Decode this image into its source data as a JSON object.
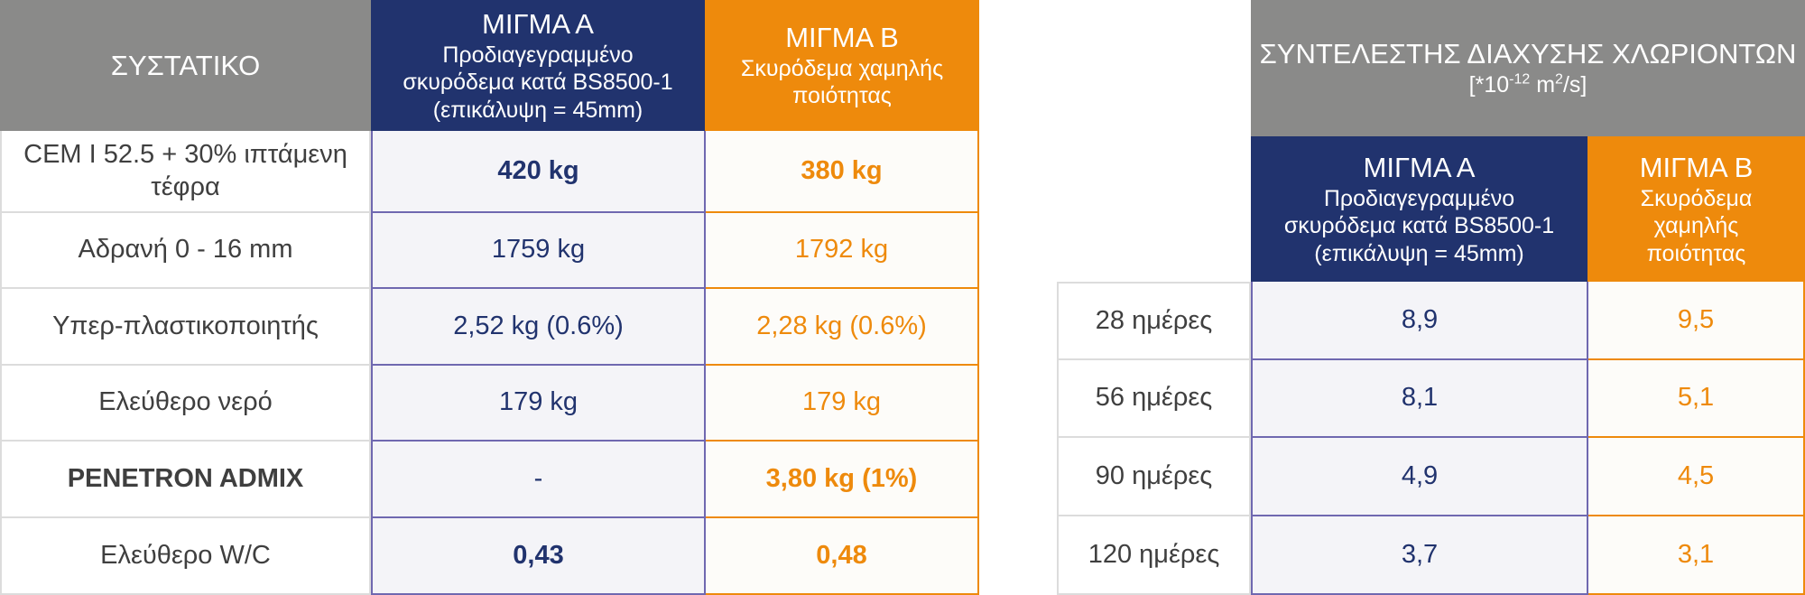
{
  "left_table": {
    "header": {
      "col_ingredient": "ΣΥΣΤΑΤΙΚΟ",
      "mix_a": {
        "title": "ΜΙΓΜΑ Α",
        "line1": "Προδιαγεγραμμένο",
        "line2": "σκυρόδεμα κατά  BS8500-1",
        "line3": "(επικάλυψη = 45mm)"
      },
      "mix_b": {
        "title": "ΜΙΓΜΑ Β",
        "line1": "Σκυρόδεμα χαμηλής",
        "line2": "ποιότητας"
      }
    },
    "rows": [
      {
        "label_line1": "CEM I 52.5 + 30% ιπτάμενη",
        "label_line2": "τέφρα",
        "a": "420 kg",
        "b": "380 kg"
      },
      {
        "label": "Αδρανή 0 - 16 mm",
        "a": "1759 kg",
        "b": "1792 kg"
      },
      {
        "label": "Υπερ-πλαστικοποιητής",
        "a": "2,52 kg (0.6%)",
        "b": "2,28 kg (0.6%)"
      },
      {
        "label": "Ελεύθερο νερό",
        "a": "179 kg",
        "b": "179 kg"
      },
      {
        "label": "PENETRON ADMIX",
        "a": "-",
        "b": "3,80 kg (1%)"
      },
      {
        "label": "Ελεύθερο W/C",
        "a": "0,43",
        "b": "0,48"
      }
    ]
  },
  "right_table": {
    "header": {
      "title": "ΣΥΝΤΕΛΕΣΤΗΣ ΔΙΑΧΥΣΗΣ ΧΛΩΡΙΟΝΤΩΝ",
      "unit_prefix": "[*10",
      "unit_exp": "-12",
      "unit_mid": " m",
      "unit_exp2": "2",
      "unit_suffix": "/s]",
      "mix_a": {
        "title": "ΜΙΓΜΑ Α",
        "line1": "Προδιαγεγραμμένο",
        "line2": "σκυρόδεμα κατά  BS8500-1",
        "line3": "(επικάλυψη = 45mm)"
      },
      "mix_b": {
        "title": "ΜΙΓΜΑ Β",
        "line1": "Σκυρόδεμα",
        "line2": "χαμηλής",
        "line3": "ποιότητας"
      }
    },
    "rows": [
      {
        "label": "28 ημέρες",
        "a": "8,9",
        "b": "9,5"
      },
      {
        "label": "56 ημέρες",
        "a": "8,1",
        "b": "5,1"
      },
      {
        "label": "90 ημέρες",
        "a": "4,9",
        "b": "4,5"
      },
      {
        "label": "120 ημέρες",
        "a": "3,7",
        "b": "3,1"
      }
    ]
  },
  "colors": {
    "gray": "#8a8a89",
    "navy": "#21336e",
    "orange": "#ee8a0c"
  }
}
